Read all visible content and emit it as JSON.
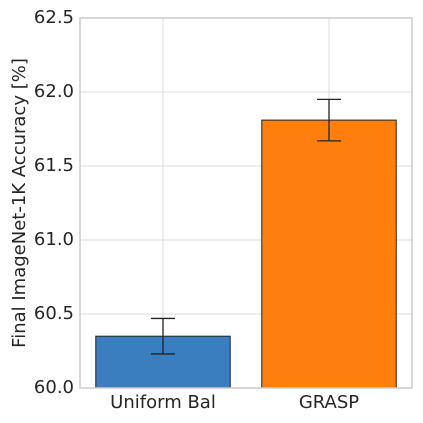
{
  "chart_data": {
    "type": "bar",
    "ylabel": "Final ImageNet-1K Accuracy [%]",
    "categories": [
      "Uniform Bal",
      "GRASP"
    ],
    "values": [
      60.35,
      61.81
    ],
    "errors": [
      0.12,
      0.14
    ],
    "colors": [
      "#3a7ebf",
      "#ff7f0e"
    ],
    "ylim": [
      60,
      62.5
    ],
    "yticks": [
      {
        "value": 60,
        "label": "60.0"
      },
      60.5,
      {
        "value": 61,
        "label": "61.0"
      },
      61.5,
      {
        "value": 62,
        "label": "62.0"
      },
      62.5
    ],
    "grid": true
  }
}
